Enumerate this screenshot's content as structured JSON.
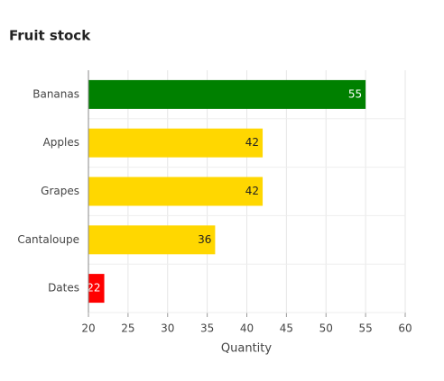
{
  "chart_data": {
    "type": "bar",
    "orientation": "horizontal",
    "title": "Fruit stock",
    "categories": [
      "Bananas",
      "Apples",
      "Grapes",
      "Cantaloupe",
      "Dates"
    ],
    "values": [
      55,
      42,
      42,
      36,
      22
    ],
    "colors": [
      "#008000",
      "#ffd700",
      "#ffd700",
      "#ffd700",
      "#ff0000"
    ],
    "x_label": "Quantity",
    "xlim": [
      20,
      60
    ],
    "xticks": [
      20,
      25,
      30,
      35,
      40,
      45,
      50,
      55,
      60
    ],
    "grid": true
  }
}
